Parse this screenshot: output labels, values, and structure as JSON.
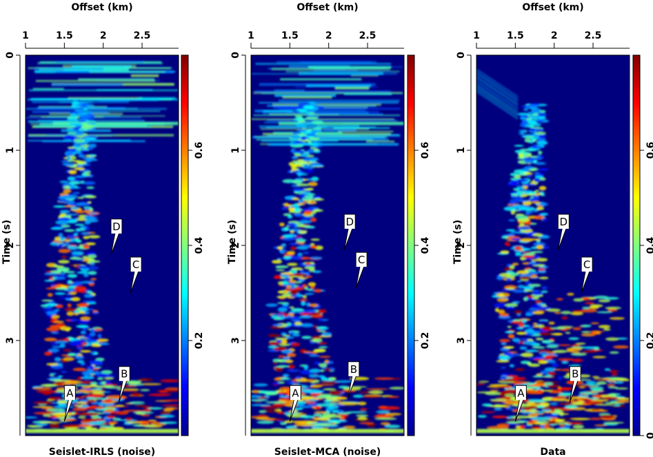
{
  "chart_data": [
    {
      "type": "heatmap",
      "title": "",
      "xlabel": "Offset (km)",
      "ylabel": "Time (s)",
      "caption": "Seislet-IRLS (noise)",
      "x_ticks": [
        "1",
        "1.5",
        "2",
        "2.5"
      ],
      "y_ticks": [
        "0",
        "1",
        "2",
        "3"
      ],
      "xlim": [
        1,
        2.97
      ],
      "ylim": [
        0,
        4
      ],
      "colorbar": {
        "ticks": [
          "0.2",
          "0.4",
          "0.6"
        ],
        "range": [
          0,
          0.8
        ],
        "colormap": "jet"
      },
      "annotations": [
        {
          "label": "D",
          "x": 2.1,
          "y": 2.1
        },
        {
          "label": "C",
          "x": 2.35,
          "y": 2.5
        },
        {
          "label": "B",
          "x": 2.2,
          "y": 3.65
        },
        {
          "label": "A",
          "x": 1.5,
          "y": 3.85
        }
      ],
      "has_ylabel": true
    },
    {
      "type": "heatmap",
      "title": "",
      "xlabel": "Offset (km)",
      "ylabel": "Time (s)",
      "caption": "Seislet-MCA (noise)",
      "x_ticks": [
        "1",
        "1.5",
        "2",
        "2.5"
      ],
      "y_ticks": [
        "0",
        "1",
        "2",
        "3"
      ],
      "xlim": [
        1,
        2.97
      ],
      "ylim": [
        0,
        4
      ],
      "colorbar": {
        "ticks": [
          "0.2",
          "0.4",
          "0.6"
        ],
        "range": [
          0,
          0.8
        ],
        "colormap": "jet"
      },
      "annotations": [
        {
          "label": "D",
          "x": 2.2,
          "y": 2.05
        },
        {
          "label": "C",
          "x": 2.35,
          "y": 2.45
        },
        {
          "label": "B",
          "x": 2.25,
          "y": 3.6
        },
        {
          "label": "A",
          "x": 1.5,
          "y": 3.85
        }
      ],
      "has_ylabel": true
    },
    {
      "type": "heatmap",
      "title": "",
      "xlabel": "Offset (km)",
      "ylabel": "Time (s)",
      "caption": "Data",
      "x_ticks": [
        "1",
        "1.5",
        "2",
        "2.5"
      ],
      "y_ticks": [
        "0",
        "1",
        "2",
        "3"
      ],
      "xlim": [
        1,
        2.97
      ],
      "ylim": [
        0,
        4
      ],
      "colorbar": {
        "ticks": [
          "0",
          "0.2",
          "0.4",
          "0.6"
        ],
        "range": [
          0,
          0.8
        ],
        "colormap": "jet"
      },
      "annotations": [
        {
          "label": "D",
          "x": 2.05,
          "y": 2.05
        },
        {
          "label": "C",
          "x": 2.35,
          "y": 2.5
        },
        {
          "label": "B",
          "x": 2.2,
          "y": 3.65
        },
        {
          "label": "A",
          "x": 1.5,
          "y": 3.85
        }
      ],
      "has_ylabel": true
    }
  ],
  "colors": {
    "background_low": "#00008f",
    "mid_cyan": "#00ffff",
    "mid_yellow": "#ffff00",
    "high_red": "#800000"
  }
}
